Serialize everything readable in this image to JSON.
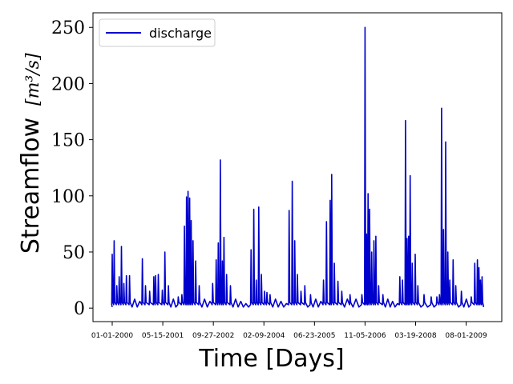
{
  "chart_data": {
    "type": "line",
    "xlabel": "Time [Days]",
    "ylabel": "Streamflow",
    "ylabel_unit": "[m³/s]",
    "ylim": [
      -12,
      263
    ],
    "yticks": [
      0,
      50,
      100,
      150,
      200,
      250
    ],
    "xlim": [
      "2000-01-01",
      "2010-04-15"
    ],
    "xticks": [
      {
        "date": "2000-01-01",
        "label": "01-01-2000"
      },
      {
        "date": "2001-05-15",
        "label": "05-15-2001"
      },
      {
        "date": "2002-09-27",
        "label": "09-27-2002"
      },
      {
        "date": "2004-02-09",
        "label": "02-09-2004"
      },
      {
        "date": "2005-06-23",
        "label": "06-23-2005"
      },
      {
        "date": "2006-11-05",
        "label": "11-05-2006"
      },
      {
        "date": "2008-03-19",
        "label": "03-19-2008"
      },
      {
        "date": "2009-08-01",
        "label": "08-01-2009"
      }
    ],
    "grid": false,
    "legend_position": "top-left",
    "series": [
      {
        "name": "discharge",
        "color": "#0000cc",
        "peaks": [
          [
            "2000-01-01",
            48
          ],
          [
            "2000-01-20",
            60
          ],
          [
            "2000-02-15",
            20
          ],
          [
            "2000-03-10",
            28
          ],
          [
            "2000-04-01",
            55
          ],
          [
            "2000-04-25",
            22
          ],
          [
            "2000-05-20",
            29
          ],
          [
            "2000-06-20",
            29
          ],
          [
            "2000-10-25",
            44
          ],
          [
            "2000-11-25",
            20
          ],
          [
            "2001-01-05",
            15
          ],
          [
            "2001-02-15",
            28
          ],
          [
            "2001-03-05",
            29
          ],
          [
            "2001-04-01",
            30
          ],
          [
            "2001-05-10",
            16
          ],
          [
            "2001-06-05",
            50
          ],
          [
            "2001-07-10",
            20
          ],
          [
            "2001-10-15",
            10
          ],
          [
            "2001-11-20",
            12
          ],
          [
            "2001-12-15",
            73
          ],
          [
            "2002-01-05",
            99
          ],
          [
            "2002-01-20",
            104
          ],
          [
            "2002-02-05",
            98
          ],
          [
            "2002-02-20",
            78
          ],
          [
            "2002-03-10",
            60
          ],
          [
            "2002-04-05",
            42
          ],
          [
            "2002-05-10",
            20
          ],
          [
            "2002-09-20",
            22
          ],
          [
            "2002-10-25",
            43
          ],
          [
            "2002-11-15",
            58
          ],
          [
            "2002-12-05",
            132
          ],
          [
            "2002-12-25",
            42
          ],
          [
            "2003-01-10",
            63
          ],
          [
            "2003-02-05",
            30
          ],
          [
            "2003-03-15",
            20
          ],
          [
            "2003-10-05",
            52
          ],
          [
            "2003-11-01",
            88
          ],
          [
            "2003-11-25",
            25
          ],
          [
            "2003-12-20",
            90
          ],
          [
            "2004-01-15",
            30
          ],
          [
            "2004-02-15",
            15
          ],
          [
            "2004-03-10",
            14
          ],
          [
            "2004-04-10",
            12
          ],
          [
            "2004-10-15",
            87
          ],
          [
            "2004-11-15",
            113
          ],
          [
            "2004-12-10",
            60
          ],
          [
            "2005-01-05",
            30
          ],
          [
            "2005-02-10",
            15
          ],
          [
            "2005-03-20",
            20
          ],
          [
            "2005-05-15",
            12
          ],
          [
            "2005-09-20",
            25
          ],
          [
            "2005-10-20",
            77
          ],
          [
            "2005-11-25",
            96
          ],
          [
            "2005-12-10",
            119
          ],
          [
            "2006-01-05",
            40
          ],
          [
            "2006-02-10",
            24
          ],
          [
            "2006-03-20",
            15
          ],
          [
            "2006-06-10",
            12
          ],
          [
            "2006-10-05",
            12
          ],
          [
            "2006-11-05",
            250
          ],
          [
            "2006-11-20",
            66
          ],
          [
            "2006-12-05",
            102
          ],
          [
            "2006-12-20",
            88
          ],
          [
            "2007-01-10",
            50
          ],
          [
            "2007-02-01",
            60
          ],
          [
            "2007-02-20",
            64
          ],
          [
            "2007-03-20",
            20
          ],
          [
            "2007-05-01",
            12
          ],
          [
            "2007-10-15",
            28
          ],
          [
            "2007-11-10",
            25
          ],
          [
            "2007-12-10",
            167
          ],
          [
            "2007-12-25",
            62
          ],
          [
            "2008-01-10",
            64
          ],
          [
            "2008-01-25",
            118
          ],
          [
            "2008-02-15",
            40
          ],
          [
            "2008-03-15",
            48
          ],
          [
            "2008-04-10",
            20
          ],
          [
            "2008-06-10",
            12
          ],
          [
            "2008-08-20",
            10
          ],
          [
            "2008-10-15",
            10
          ],
          [
            "2008-11-10",
            12
          ],
          [
            "2008-12-01",
            178
          ],
          [
            "2008-12-20",
            70
          ],
          [
            "2009-01-10",
            148
          ],
          [
            "2009-02-01",
            50
          ],
          [
            "2009-02-20",
            25
          ],
          [
            "2009-03-25",
            43
          ],
          [
            "2009-04-20",
            20
          ],
          [
            "2009-06-15",
            15
          ],
          [
            "2009-09-20",
            10
          ],
          [
            "2009-10-25",
            40
          ],
          [
            "2009-11-20",
            43
          ],
          [
            "2009-12-05",
            36
          ],
          [
            "2009-12-20",
            25
          ],
          [
            "2010-01-05",
            28
          ]
        ]
      }
    ]
  }
}
